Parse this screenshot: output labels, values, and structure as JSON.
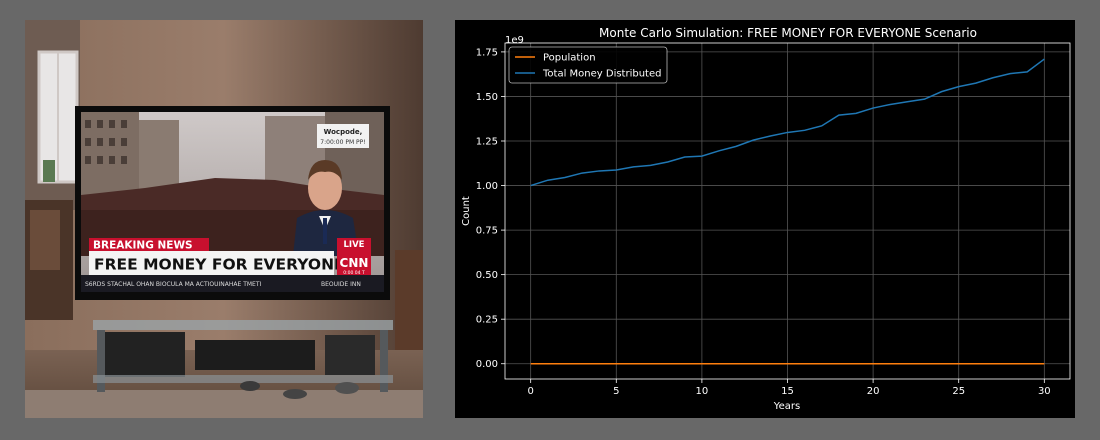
{
  "photo": {
    "subject": "tv-news-broadcast",
    "tv": {
      "location_label": "Wocpode,",
      "time_label": "7:00:00 PM PP!",
      "breaking_label": "BREAKING NEWS",
      "headline": "FREE MONEY FOR EVERYONE",
      "live_label": "LIVE",
      "network_logo": "CNN",
      "logo_subtext": "0:00 04 T",
      "ticker_left": "S6RDS STACHAL OHAN BIOCULA MA ACTIOUINAHAE TMETI",
      "ticker_right": "BEOUIDE INN",
      "colors": {
        "breaking_red": "#c8102e",
        "headline_bg": "#f4f4f4",
        "ticker_bg": "#1a1a22"
      }
    }
  },
  "chart_data": {
    "type": "line",
    "title": "Monte Carlo Simulation: FREE MONEY FOR EVERYONE Scenario",
    "xlabel": "Years",
    "ylabel": "Count",
    "y_offset_label": "1e9",
    "xlim": [
      -1.5,
      31.5
    ],
    "ylim": [
      -0.0857,
      1.8
    ],
    "xticks": [
      0,
      5,
      10,
      15,
      20,
      25,
      30
    ],
    "yticks": [
      0,
      0.25,
      0.5,
      0.75,
      1.0,
      1.25,
      1.5,
      1.75
    ],
    "ytick_labels": [
      "0.00",
      "0.25",
      "0.50",
      "0.75",
      "1.00",
      "1.25",
      "1.50",
      "1.75"
    ],
    "grid": true,
    "legend_position": "top-left",
    "background": "#000000",
    "x": [
      0,
      1,
      2,
      3,
      4,
      5,
      6,
      7,
      8,
      9,
      10,
      11,
      12,
      13,
      14,
      15,
      16,
      17,
      18,
      19,
      20,
      21,
      22,
      23,
      24,
      25,
      26,
      27,
      28,
      29,
      30
    ],
    "series": [
      {
        "name": "Population",
        "color": "#ff7f0e",
        "values": [
          0,
          0,
          0,
          0,
          0,
          0,
          0,
          0,
          0,
          0,
          0,
          0,
          0,
          0,
          0,
          0,
          0,
          0,
          0,
          0,
          0,
          0,
          0,
          0,
          0,
          0,
          0,
          0,
          0,
          0,
          0
        ]
      },
      {
        "name": "Total Money Distributed",
        "color": "#1f77b4",
        "values": [
          1.0,
          1.03,
          1.045,
          1.07,
          1.082,
          1.087,
          1.105,
          1.113,
          1.132,
          1.16,
          1.165,
          1.195,
          1.22,
          1.255,
          1.278,
          1.298,
          1.31,
          1.335,
          1.395,
          1.405,
          1.435,
          1.455,
          1.47,
          1.485,
          1.527,
          1.555,
          1.575,
          1.605,
          1.628,
          1.638,
          1.71
        ]
      }
    ]
  }
}
